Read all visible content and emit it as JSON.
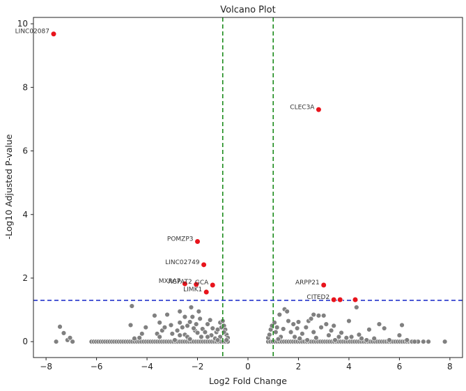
{
  "chart_data": {
    "type": "scatter",
    "title": "Volcano Plot",
    "xlabel": "Log2 Fold Change",
    "ylabel": "-Log10 Adjusted P-value",
    "xlim": [
      -8.5,
      8.5
    ],
    "ylim": [
      -0.5,
      10.2
    ],
    "xticks": [
      -8,
      -6,
      -4,
      -2,
      0,
      2,
      4,
      6,
      8
    ],
    "yticks": [
      0,
      2,
      4,
      6,
      8,
      10
    ],
    "xtick_labels": [
      "−8",
      "−6",
      "−4",
      "−2",
      "0",
      "2",
      "4",
      "6",
      "8"
    ],
    "ytick_labels": [
      "0",
      "2",
      "4",
      "6",
      "8",
      "10"
    ],
    "grid": false,
    "thresholds": {
      "fold_change": [
        -1,
        1
      ],
      "fold_change_color": "#1a8a1a",
      "pvalue": 1.3,
      "pvalue_color": "#2233cc"
    },
    "colors": {
      "significant": "#e8141c",
      "nonsignificant": "#808080",
      "point_edge": "#ffffff"
    },
    "significant_points": [
      {
        "label": "LINC02087",
        "x": -7.7,
        "y": 9.68
      },
      {
        "label": "CLEC3A",
        "x": 2.8,
        "y": 7.3
      },
      {
        "label": "POMZP3",
        "x": -2.0,
        "y": 3.15
      },
      {
        "label": "LINC02749",
        "x": -1.75,
        "y": 2.42
      },
      {
        "label": "MXRA7",
        "x": -2.5,
        "y": 1.82
      },
      {
        "label": "AGPAT2",
        "x": -2.05,
        "y": 1.8
      },
      {
        "label": "GCA",
        "x": -1.4,
        "y": 1.78
      },
      {
        "label": "LIMK1",
        "x": -1.65,
        "y": 1.56
      },
      {
        "label": "ARPP21",
        "x": 3.0,
        "y": 1.78
      },
      {
        "label": "CITED2",
        "x": 3.4,
        "y": 1.32
      },
      {
        "label": "",
        "x": 3.65,
        "y": 1.32
      },
      {
        "label": "",
        "x": 4.25,
        "y": 1.32
      }
    ],
    "nonsignificant_points": [
      {
        "x": -7.6,
        "y": 0.0
      },
      {
        "x": -7.45,
        "y": 0.47
      },
      {
        "x": -7.3,
        "y": 0.27
      },
      {
        "x": -7.15,
        "y": 0.05
      },
      {
        "x": -7.05,
        "y": 0.12
      },
      {
        "x": -6.95,
        "y": 0.0
      },
      {
        "x": -4.6,
        "y": 1.12
      },
      {
        "x": -4.65,
        "y": 0.52
      },
      {
        "x": -4.3,
        "y": 0.12
      },
      {
        "x": -4.2,
        "y": 0.25
      },
      {
        "x": -4.05,
        "y": 0.45
      },
      {
        "x": -3.7,
        "y": 0.82
      },
      {
        "x": -3.6,
        "y": 0.25
      },
      {
        "x": -3.5,
        "y": 0.15
      },
      {
        "x": -3.4,
        "y": 0.35
      },
      {
        "x": -3.2,
        "y": 0.85
      },
      {
        "x": -3.05,
        "y": 0.52
      },
      {
        "x": -2.9,
        "y": 0.05
      },
      {
        "x": -2.8,
        "y": 0.35
      },
      {
        "x": -2.7,
        "y": 0.6
      },
      {
        "x": -2.6,
        "y": 0.45
      },
      {
        "x": -2.5,
        "y": 0.22
      },
      {
        "x": -2.4,
        "y": 0.5
      },
      {
        "x": -2.3,
        "y": 0.62
      },
      {
        "x": -2.2,
        "y": 0.78
      },
      {
        "x": -2.1,
        "y": 0.35
      },
      {
        "x": -2.05,
        "y": 0.55
      },
      {
        "x": -2.0,
        "y": 0.28
      },
      {
        "x": -1.9,
        "y": 0.72
      },
      {
        "x": -1.85,
        "y": 0.15
      },
      {
        "x": -1.8,
        "y": 0.4
      },
      {
        "x": -1.7,
        "y": 0.3
      },
      {
        "x": -1.6,
        "y": 0.55
      },
      {
        "x": -1.5,
        "y": 0.68
      },
      {
        "x": -1.45,
        "y": 0.2
      },
      {
        "x": -1.4,
        "y": 0.42
      },
      {
        "x": -1.3,
        "y": 0.1
      },
      {
        "x": -1.25,
        "y": 0.3
      },
      {
        "x": -1.2,
        "y": 0.38
      },
      {
        "x": -1.1,
        "y": 0.6
      },
      {
        "x": -1.05,
        "y": 0.45
      },
      {
        "x": -0.95,
        "y": 0.5
      },
      {
        "x": -0.9,
        "y": 0.38
      },
      {
        "x": -0.85,
        "y": 0.22
      },
      {
        "x": -0.8,
        "y": 0.12
      },
      {
        "x": -1.1,
        "y": 0.15
      },
      {
        "x": -0.95,
        "y": 0.3
      },
      {
        "x": -0.85,
        "y": 0.05
      },
      {
        "x": -2.4,
        "y": 0.15
      },
      {
        "x": -3.3,
        "y": 0.45
      },
      {
        "x": -3.0,
        "y": 0.25
      },
      {
        "x": -2.3,
        "y": 0.08
      },
      {
        "x": -2.15,
        "y": 0.42
      },
      {
        "x": -2.5,
        "y": 0.78
      },
      {
        "x": -2.7,
        "y": 0.2
      },
      {
        "x": -1.6,
        "y": 0.15
      },
      {
        "x": -1.95,
        "y": 0.95
      },
      {
        "x": -2.7,
        "y": 0.95
      },
      {
        "x": -3.5,
        "y": 0.6
      },
      {
        "x": -4.5,
        "y": 0.1
      },
      {
        "x": -2.25,
        "y": 1.08
      },
      {
        "x": -1.0,
        "y": 0.65
      },
      {
        "x": -1.2,
        "y": 0.05
      },
      {
        "x": 0.8,
        "y": 0.12
      },
      {
        "x": 0.85,
        "y": 0.22
      },
      {
        "x": 0.9,
        "y": 0.38
      },
      {
        "x": 0.95,
        "y": 0.5
      },
      {
        "x": 1.05,
        "y": 0.6
      },
      {
        "x": 1.1,
        "y": 0.3
      },
      {
        "x": 1.15,
        "y": 0.45
      },
      {
        "x": 1.25,
        "y": 0.85
      },
      {
        "x": 1.3,
        "y": 0.15
      },
      {
        "x": 1.4,
        "y": 0.4
      },
      {
        "x": 1.45,
        "y": 1.02
      },
      {
        "x": 1.55,
        "y": 0.95
      },
      {
        "x": 1.6,
        "y": 0.65
      },
      {
        "x": 1.7,
        "y": 0.3
      },
      {
        "x": 1.8,
        "y": 0.55
      },
      {
        "x": 1.85,
        "y": 0.15
      },
      {
        "x": 1.95,
        "y": 0.42
      },
      {
        "x": 2.05,
        "y": 0.1
      },
      {
        "x": 2.15,
        "y": 0.25
      },
      {
        "x": 2.3,
        "y": 0.45
      },
      {
        "x": 2.4,
        "y": 0.65
      },
      {
        "x": 2.5,
        "y": 0.72
      },
      {
        "x": 2.6,
        "y": 0.3
      },
      {
        "x": 2.7,
        "y": 0.12
      },
      {
        "x": 2.8,
        "y": 0.82
      },
      {
        "x": 2.9,
        "y": 0.45
      },
      {
        "x": 3.0,
        "y": 0.82
      },
      {
        "x": 3.1,
        "y": 0.55
      },
      {
        "x": 3.2,
        "y": 0.2
      },
      {
        "x": 3.3,
        "y": 0.35
      },
      {
        "x": 3.45,
        "y": 0.05
      },
      {
        "x": 3.6,
        "y": 0.15
      },
      {
        "x": 3.7,
        "y": 0.28
      },
      {
        "x": 3.9,
        "y": 0.12
      },
      {
        "x": 4.0,
        "y": 0.65
      },
      {
        "x": 4.1,
        "y": 0.15
      },
      {
        "x": 4.3,
        "y": 1.08
      },
      {
        "x": 4.4,
        "y": 0.22
      },
      {
        "x": 4.5,
        "y": 0.1
      },
      {
        "x": 4.7,
        "y": 0.05
      },
      {
        "x": 4.8,
        "y": 0.38
      },
      {
        "x": 5.0,
        "y": 0.1
      },
      {
        "x": 5.2,
        "y": 0.55
      },
      {
        "x": 5.4,
        "y": 0.42
      },
      {
        "x": 5.6,
        "y": 0.05
      },
      {
        "x": 6.0,
        "y": 0.2
      },
      {
        "x": 6.1,
        "y": 0.52
      },
      {
        "x": 6.3,
        "y": 0.05
      },
      {
        "x": 2.35,
        "y": 0.05
      },
      {
        "x": 1.2,
        "y": 0.08
      },
      {
        "x": 2.0,
        "y": 0.62
      },
      {
        "x": 3.4,
        "y": 0.5
      },
      {
        "x": 2.6,
        "y": 0.85
      }
    ],
    "baseline_band": {
      "y": 0.0,
      "x_ranges": [
        [
          -6.2,
          -0.8
        ],
        [
          0.8,
          6.8
        ]
      ],
      "step": 0.09,
      "extra_x": [
        6.5,
        6.6,
        6.95,
        7.15,
        7.8
      ]
    }
  }
}
